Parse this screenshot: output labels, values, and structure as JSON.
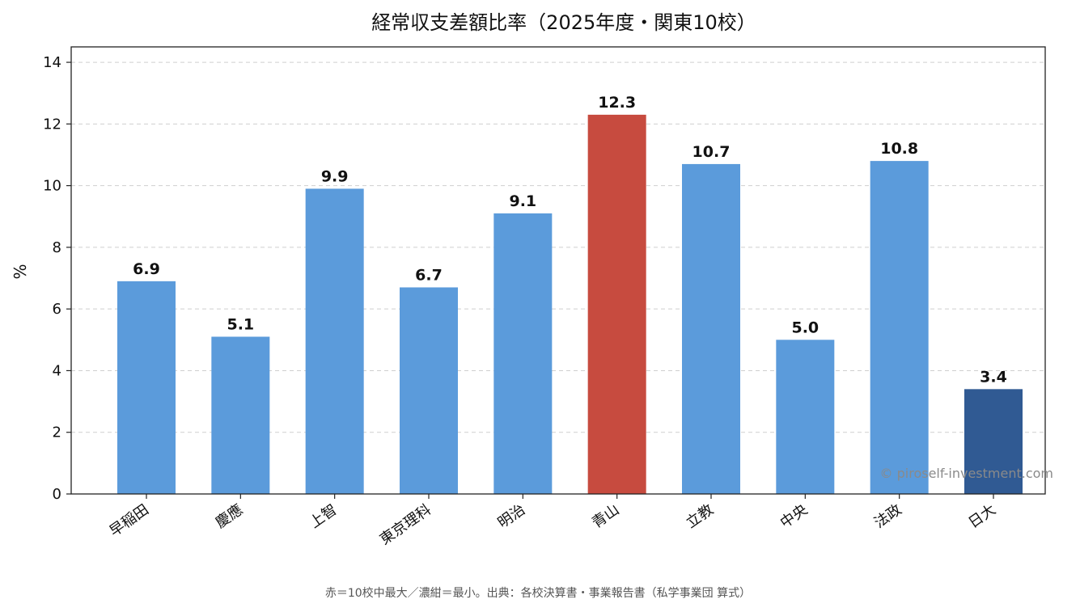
{
  "chart_data": {
    "type": "bar",
    "title": "経常収支差額比率（2025年度・関東10校）",
    "xlabel": "",
    "ylabel": "%",
    "ylim": [
      0,
      14.5
    ],
    "yticks": [
      0,
      2,
      4,
      6,
      8,
      10,
      12,
      14
    ],
    "grid": "y-dashed",
    "categories": [
      "早稲田",
      "慶應",
      "上智",
      "東京理科",
      "明治",
      "青山",
      "立教",
      "中央",
      "法政",
      "日大"
    ],
    "values": [
      6.9,
      5.1,
      9.9,
      6.7,
      9.1,
      12.3,
      10.7,
      5.0,
      10.8,
      3.4
    ],
    "data_labels": [
      "6.9",
      "5.1",
      "9.9",
      "6.7",
      "9.1",
      "12.3",
      "10.7",
      "5.0",
      "10.8",
      "3.4"
    ],
    "highlight": {
      "max_index": 5,
      "min_index": 9
    },
    "colors": {
      "default": "#5b9bdb",
      "max": "#c74b3f",
      "min": "#305a93"
    },
    "watermark": "© piroself-investment.com",
    "footnote": "赤＝10校中最大／濃紺＝最小。出典：各校決算書・事業報告書（私学事業団 算式）"
  }
}
